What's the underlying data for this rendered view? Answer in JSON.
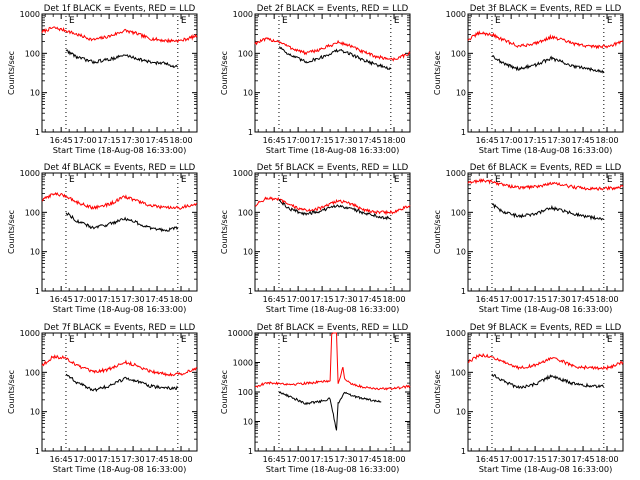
{
  "chart_data": [
    {
      "type": "line",
      "title": "Det 1f BLACK = Events, RED = LLD",
      "xlabel": "Start Time (18-Aug-08 16:33:00)",
      "ylabel": "Counts/sec",
      "yscale": "log",
      "ylim": [
        1,
        1000
      ],
      "y_ticks": [
        "1",
        "10",
        "100",
        "1000"
      ],
      "xlim": [
        "16:33",
        "18:10"
      ],
      "x_ticks": [
        "16:45",
        "17:00",
        "17:15",
        "17:30",
        "17:45",
        "18:00"
      ],
      "markers": [
        {
          "label": "E",
          "x": "16:48"
        },
        {
          "label": "E",
          "x": "17:58"
        }
      ],
      "series": [
        {
          "color": "#ff0000",
          "x": [
            "16:33",
            "16:40",
            "16:48",
            "16:55",
            "17:05",
            "17:15",
            "17:25",
            "17:32",
            "17:40",
            "17:50",
            "18:00",
            "18:10"
          ],
          "values": [
            350,
            450,
            380,
            300,
            220,
            270,
            380,
            320,
            240,
            210,
            210,
            280
          ]
        },
        {
          "color": "#000000",
          "x": [
            "16:48",
            "16:55",
            "17:05",
            "17:15",
            "17:25",
            "17:32",
            "17:40",
            "17:50",
            "17:58"
          ],
          "values": [
            120,
            80,
            60,
            70,
            90,
            75,
            60,
            55,
            45
          ]
        }
      ]
    },
    {
      "type": "line",
      "title": "Det 2f BLACK = Events, RED = LLD",
      "xlabel": "Start Time (18-Aug-08 16:33:00)",
      "ylabel": "Counts/sec",
      "yscale": "log",
      "ylim": [
        1,
        1000
      ],
      "y_ticks": [
        "1",
        "10",
        "100",
        "1000"
      ],
      "xlim": [
        "16:33",
        "18:10"
      ],
      "x_ticks": [
        "16:45",
        "17:00",
        "17:15",
        "17:30",
        "17:45",
        "18:00"
      ],
      "markers": [
        {
          "label": "E",
          "x": "16:48"
        },
        {
          "label": "E",
          "x": "17:58"
        }
      ],
      "series": [
        {
          "color": "#ff0000",
          "x": [
            "16:33",
            "16:40",
            "16:48",
            "16:55",
            "17:05",
            "17:15",
            "17:25",
            "17:32",
            "17:40",
            "17:50",
            "18:00",
            "18:10"
          ],
          "values": [
            180,
            230,
            200,
            140,
            100,
            130,
            190,
            160,
            110,
            80,
            70,
            100
          ]
        },
        {
          "color": "#000000",
          "x": [
            "16:48",
            "16:55",
            "17:05",
            "17:15",
            "17:25",
            "17:32",
            "17:40",
            "17:50",
            "17:58"
          ],
          "values": [
            150,
            90,
            60,
            80,
            120,
            100,
            70,
            50,
            40
          ]
        }
      ]
    },
    {
      "type": "line",
      "title": "Det 3f BLACK = Events, RED = LLD",
      "xlabel": "Start Time (18-Aug-08 16:33:00)",
      "ylabel": "Counts/sec",
      "yscale": "log",
      "ylim": [
        1,
        1000
      ],
      "y_ticks": [
        "1",
        "10",
        "100",
        "1000"
      ],
      "xlim": [
        "16:33",
        "18:10"
      ],
      "x_ticks": [
        "16:45",
        "17:00",
        "17:15",
        "17:30",
        "17:45",
        "18:00"
      ],
      "markers": [
        {
          "label": "E",
          "x": "16:48"
        },
        {
          "label": "E",
          "x": "17:58"
        }
      ],
      "series": [
        {
          "color": "#ff0000",
          "x": [
            "16:33",
            "16:40",
            "16:48",
            "16:55",
            "17:05",
            "17:15",
            "17:25",
            "17:32",
            "17:40",
            "17:50",
            "18:00",
            "18:10"
          ],
          "values": [
            220,
            330,
            300,
            220,
            150,
            180,
            260,
            220,
            170,
            150,
            150,
            200
          ]
        },
        {
          "color": "#000000",
          "x": [
            "16:48",
            "16:55",
            "17:05",
            "17:15",
            "17:25",
            "17:32",
            "17:40",
            "17:50",
            "17:58"
          ],
          "values": [
            90,
            55,
            40,
            50,
            75,
            60,
            45,
            40,
            35
          ]
        }
      ]
    },
    {
      "type": "line",
      "title": "Det 4f BLACK = Events, RED = LLD",
      "xlabel": "Start Time (18-Aug-08 16:33:00)",
      "ylabel": "Counts/sec",
      "yscale": "log",
      "ylim": [
        1,
        1000
      ],
      "y_ticks": [
        "1",
        "10",
        "100",
        "1000"
      ],
      "xlim": [
        "16:33",
        "18:10"
      ],
      "x_ticks": [
        "16:45",
        "17:00",
        "17:15",
        "17:30",
        "17:45",
        "18:00"
      ],
      "markers": [
        {
          "label": "E",
          "x": "16:48"
        },
        {
          "label": "E",
          "x": "17:58"
        }
      ],
      "series": [
        {
          "color": "#ff0000",
          "x": [
            "16:33",
            "16:40",
            "16:48",
            "16:55",
            "17:05",
            "17:15",
            "17:25",
            "17:32",
            "17:40",
            "17:50",
            "18:00",
            "18:10"
          ],
          "values": [
            200,
            300,
            260,
            180,
            130,
            160,
            250,
            200,
            150,
            130,
            130,
            170
          ]
        },
        {
          "color": "#000000",
          "x": [
            "16:48",
            "16:55",
            "17:05",
            "17:15",
            "17:25",
            "17:32",
            "17:40",
            "17:50",
            "17:58"
          ],
          "values": [
            100,
            60,
            40,
            50,
            70,
            55,
            40,
            35,
            40
          ]
        }
      ]
    },
    {
      "type": "line",
      "title": "Det 5f BLACK = Events, RED = LLD",
      "xlabel": "Start Time (18-Aug-08 16:33:00)",
      "ylabel": "Counts/sec",
      "yscale": "log",
      "ylim": [
        1,
        1000
      ],
      "y_ticks": [
        "1",
        "10",
        "100",
        "1000"
      ],
      "xlim": [
        "16:33",
        "18:10"
      ],
      "x_ticks": [
        "16:45",
        "17:00",
        "17:15",
        "17:30",
        "17:45",
        "18:00"
      ],
      "markers": [
        {
          "label": "E",
          "x": "16:48"
        },
        {
          "label": "E",
          "x": "17:58"
        }
      ],
      "series": [
        {
          "color": "#ff0000",
          "x": [
            "16:33",
            "16:40",
            "16:48",
            "16:55",
            "17:05",
            "17:15",
            "17:25",
            "17:32",
            "17:40",
            "17:50",
            "18:00",
            "18:10"
          ],
          "values": [
            150,
            230,
            210,
            150,
            110,
            130,
            200,
            170,
            120,
            100,
            100,
            150
          ]
        },
        {
          "color": "#000000",
          "x": [
            "16:48",
            "16:55",
            "17:05",
            "17:15",
            "17:25",
            "17:32",
            "17:40",
            "17:50",
            "17:58"
          ],
          "values": [
            200,
            120,
            90,
            110,
            150,
            130,
            100,
            80,
            70
          ]
        }
      ]
    },
    {
      "type": "line",
      "title": "Det 6f BLACK = Events, RED = LLD",
      "xlabel": "Start Time (18-Aug-08 16:33:00)",
      "ylabel": "Counts/sec",
      "yscale": "log",
      "ylim": [
        1,
        1000
      ],
      "y_ticks": [
        "1",
        "10",
        "100",
        "1000"
      ],
      "xlim": [
        "16:33",
        "18:10"
      ],
      "x_ticks": [
        "16:45",
        "17:00",
        "17:15",
        "17:30",
        "17:45",
        "18:00"
      ],
      "markers": [
        {
          "label": "E",
          "x": "16:48"
        },
        {
          "label": "E",
          "x": "17:58"
        }
      ],
      "series": [
        {
          "color": "#ff0000",
          "x": [
            "16:33",
            "16:40",
            "16:48",
            "16:55",
            "17:05",
            "17:15",
            "17:25",
            "17:32",
            "17:40",
            "17:50",
            "18:00",
            "18:10"
          ],
          "values": [
            550,
            650,
            600,
            500,
            420,
            450,
            540,
            500,
            430,
            400,
            400,
            450
          ]
        },
        {
          "color": "#000000",
          "x": [
            "16:48",
            "16:55",
            "17:05",
            "17:15",
            "17:25",
            "17:32",
            "17:40",
            "17:50",
            "17:58"
          ],
          "values": [
            160,
            100,
            80,
            90,
            130,
            110,
            90,
            75,
            65
          ]
        }
      ]
    },
    {
      "type": "line",
      "title": "Det 7f BLACK = Events, RED = LLD",
      "xlabel": "Start Time (18-Aug-08 16:33:00)",
      "ylabel": "Counts/sec",
      "yscale": "log",
      "ylim": [
        1,
        1000
      ],
      "y_ticks": [
        "1",
        "10",
        "100",
        "1000"
      ],
      "xlim": [
        "16:33",
        "18:10"
      ],
      "x_ticks": [
        "16:45",
        "17:00",
        "17:15",
        "17:30",
        "17:45",
        "18:00"
      ],
      "markers": [
        {
          "label": "E",
          "x": "16:48"
        },
        {
          "label": "E",
          "x": "17:58"
        }
      ],
      "series": [
        {
          "color": "#ff0000",
          "x": [
            "16:33",
            "16:40",
            "16:48",
            "16:55",
            "17:05",
            "17:15",
            "17:25",
            "17:32",
            "17:40",
            "17:50",
            "18:00",
            "18:10"
          ],
          "values": [
            150,
            250,
            230,
            150,
            100,
            120,
            180,
            150,
            110,
            90,
            90,
            130
          ]
        },
        {
          "color": "#000000",
          "x": [
            "16:48",
            "16:55",
            "17:05",
            "17:15",
            "17:25",
            "17:32",
            "17:40",
            "17:50",
            "17:58"
          ],
          "values": [
            90,
            55,
            35,
            45,
            70,
            60,
            45,
            40,
            40
          ]
        }
      ]
    },
    {
      "type": "line",
      "title": "Det 8f BLACK = Events, RED = LLD",
      "xlabel": "Start Time (18-Aug-08 16:33:00)",
      "ylabel": "Counts/sec",
      "yscale": "log",
      "ylim": [
        1,
        10000
      ],
      "y_ticks": [
        "1",
        "10",
        "100",
        "1000",
        "10000"
      ],
      "xlim": [
        "16:33",
        "18:10"
      ],
      "x_ticks": [
        "16:45",
        "17:00",
        "17:15",
        "17:30",
        "17:45",
        "18:00"
      ],
      "markers": [
        {
          "label": "E",
          "x": "16:48"
        },
        {
          "label": "E",
          "x": "17:58"
        }
      ],
      "series": [
        {
          "color": "#ff0000",
          "x": [
            "16:33",
            "16:40",
            "16:48",
            "16:55",
            "17:05",
            "17:15",
            "17:20",
            "17:21",
            "17:24",
            "17:25",
            "17:28",
            "17:29",
            "17:32",
            "17:40",
            "17:50",
            "18:00",
            "18:10"
          ],
          "values": [
            150,
            200,
            200,
            180,
            200,
            220,
            240,
            10000,
            10000,
            180,
            700,
            300,
            200,
            150,
            130,
            130,
            160
          ]
        },
        {
          "color": "#000000",
          "x": [
            "16:48",
            "16:55",
            "17:05",
            "17:15",
            "17:20",
            "17:24",
            "17:25",
            "17:27",
            "17:29",
            "17:35",
            "17:45",
            "17:52"
          ],
          "values": [
            100,
            70,
            40,
            50,
            60,
            5,
            40,
            60,
            100,
            70,
            55,
            45
          ]
        }
      ]
    },
    {
      "type": "line",
      "title": "Det 9f BLACK = Events, RED = LLD",
      "xlabel": "Start Time (18-Aug-08 16:33:00)",
      "ylabel": "Counts/sec",
      "yscale": "log",
      "ylim": [
        1,
        1000
      ],
      "y_ticks": [
        "1",
        "10",
        "100",
        "1000"
      ],
      "xlim": [
        "16:33",
        "18:10"
      ],
      "x_ticks": [
        "16:45",
        "17:00",
        "17:15",
        "17:30",
        "17:45",
        "18:00"
      ],
      "markers": [
        {
          "label": "E",
          "x": "16:48"
        },
        {
          "label": "E",
          "x": "17:58"
        }
      ],
      "series": [
        {
          "color": "#ff0000",
          "x": [
            "16:33",
            "16:40",
            "16:48",
            "16:55",
            "17:05",
            "17:15",
            "17:25",
            "17:32",
            "17:40",
            "17:50",
            "18:00",
            "18:10"
          ],
          "values": [
            180,
            270,
            250,
            180,
            130,
            150,
            230,
            190,
            140,
            130,
            130,
            180
          ]
        },
        {
          "color": "#000000",
          "x": [
            "16:48",
            "16:55",
            "17:05",
            "17:15",
            "17:25",
            "17:32",
            "17:40",
            "17:50",
            "17:58"
          ],
          "values": [
            90,
            60,
            40,
            50,
            80,
            65,
            50,
            45,
            45
          ]
        }
      ]
    }
  ]
}
